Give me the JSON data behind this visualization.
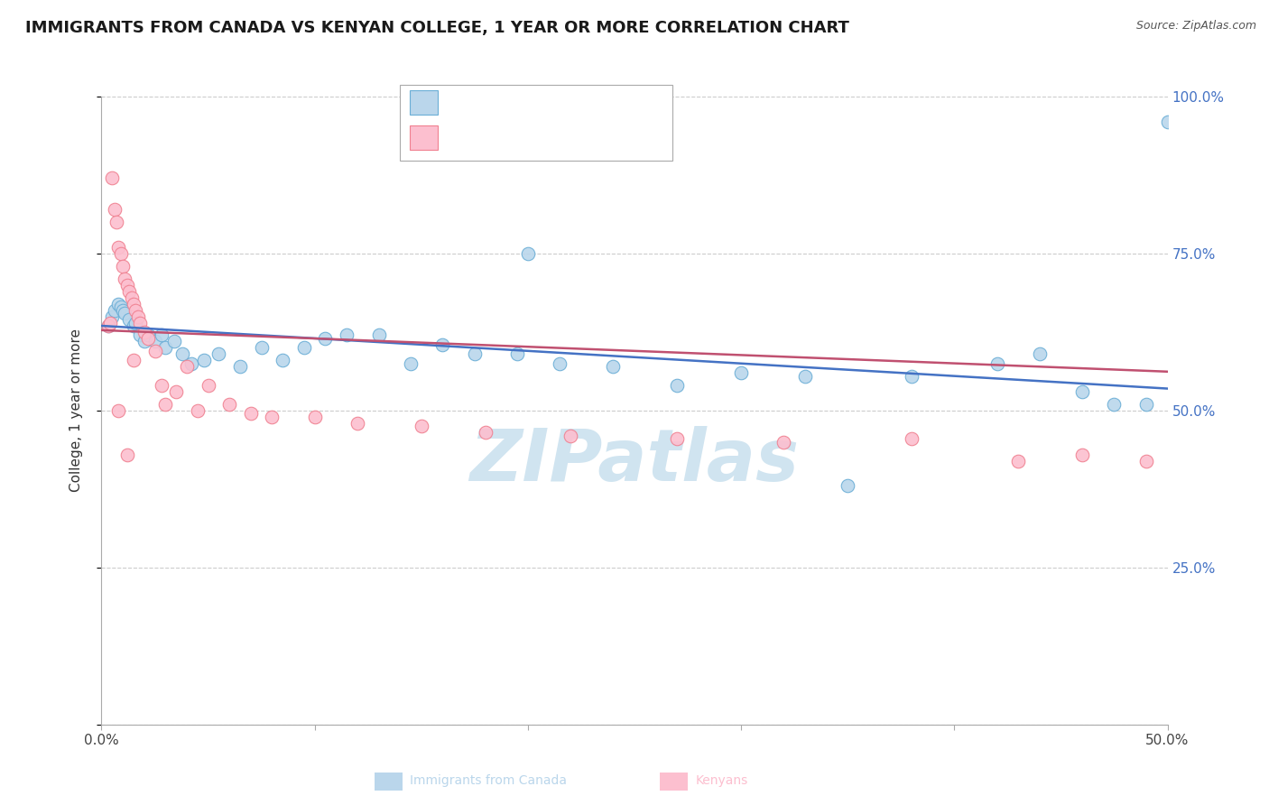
{
  "title": "IMMIGRANTS FROM CANADA VS KENYAN COLLEGE, 1 YEAR OR MORE CORRELATION CHART",
  "source_text": "Source: ZipAtlas.com",
  "ylabel": "College, 1 year or more",
  "legend_label1": "Immigrants from Canada",
  "legend_label2": "Kenyans",
  "blue_fill": "#bad6eb",
  "blue_edge": "#6aaed6",
  "pink_fill": "#fcbfcf",
  "pink_edge": "#f08090",
  "blue_line_color": "#4472c4",
  "pink_line_color": "#c05070",
  "r_value_color": "#c00000",
  "n_value_color": "#4472c4",
  "watermark": "ZIPatlas",
  "watermark_color": "#d0e4f0",
  "xlim": [
    0.0,
    0.5
  ],
  "ylim": [
    0.0,
    1.0
  ],
  "y_ticks": [
    0.0,
    0.25,
    0.5,
    0.75,
    1.0
  ],
  "y_tick_labels_right": [
    "",
    "25.0%",
    "50.0%",
    "75.0%",
    "100.0%"
  ],
  "blue_x": [
    0.003,
    0.005,
    0.006,
    0.008,
    0.009,
    0.01,
    0.011,
    0.013,
    0.015,
    0.016,
    0.018,
    0.02,
    0.022,
    0.025,
    0.028,
    0.03,
    0.034,
    0.038,
    0.042,
    0.048,
    0.055,
    0.065,
    0.075,
    0.085,
    0.095,
    0.105,
    0.115,
    0.13,
    0.145,
    0.16,
    0.175,
    0.195,
    0.215,
    0.24,
    0.27,
    0.3,
    0.33,
    0.38,
    0.42,
    0.44,
    0.46,
    0.475,
    0.49,
    0.35,
    0.2,
    0.65
  ],
  "blue_y": [
    0.635,
    0.65,
    0.66,
    0.67,
    0.665,
    0.66,
    0.655,
    0.645,
    0.635,
    0.64,
    0.62,
    0.61,
    0.62,
    0.61,
    0.62,
    0.6,
    0.61,
    0.59,
    0.575,
    0.58,
    0.59,
    0.57,
    0.6,
    0.58,
    0.6,
    0.615,
    0.62,
    0.62,
    0.575,
    0.605,
    0.59,
    0.59,
    0.575,
    0.57,
    0.54,
    0.56,
    0.555,
    0.555,
    0.575,
    0.59,
    0.53,
    0.51,
    0.51,
    0.38,
    0.75,
    0.96
  ],
  "pink_x": [
    0.003,
    0.004,
    0.005,
    0.006,
    0.007,
    0.008,
    0.009,
    0.01,
    0.011,
    0.012,
    0.013,
    0.014,
    0.015,
    0.016,
    0.017,
    0.018,
    0.02,
    0.022,
    0.025,
    0.028,
    0.03,
    0.035,
    0.04,
    0.045,
    0.05,
    0.06,
    0.07,
    0.08,
    0.1,
    0.12,
    0.15,
    0.18,
    0.22,
    0.27,
    0.32,
    0.38,
    0.43,
    0.46,
    0.49,
    0.015,
    0.008,
    0.012
  ],
  "pink_y": [
    0.635,
    0.64,
    0.87,
    0.82,
    0.8,
    0.76,
    0.75,
    0.73,
    0.71,
    0.7,
    0.69,
    0.68,
    0.67,
    0.66,
    0.65,
    0.64,
    0.625,
    0.615,
    0.595,
    0.54,
    0.51,
    0.53,
    0.57,
    0.5,
    0.54,
    0.51,
    0.495,
    0.49,
    0.49,
    0.48,
    0.475,
    0.465,
    0.46,
    0.455,
    0.45,
    0.455,
    0.42,
    0.43,
    0.42,
    0.58,
    0.5,
    0.43
  ],
  "blue_trend": [
    0.635,
    0.535
  ],
  "pink_trend": [
    0.628,
    0.562
  ],
  "x_tick_positions": [
    0.0,
    0.1,
    0.2,
    0.3,
    0.4,
    0.5
  ],
  "x_tick_labels": [
    "0.0%",
    "",
    "",
    "",
    "",
    "50.0%"
  ],
  "grid_color": "#cccccc",
  "spine_color": "#aaaaaa"
}
